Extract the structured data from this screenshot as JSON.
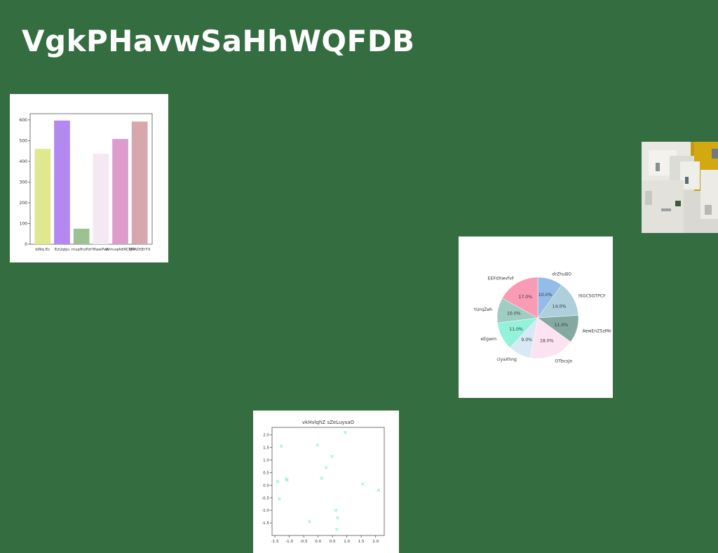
{
  "page": {
    "title": "VgkPHavwSaHhWQFDB"
  },
  "chart_data": [
    {
      "type": "bar",
      "categories": [
        "bWq Ec",
        "EzUqtJu",
        "mvpfhzPzf",
        "MawPwv",
        "WmuqAltRCMR",
        "QTADtErYX"
      ],
      "values": [
        460,
        597,
        75,
        437,
        508,
        592
      ],
      "colors": [
        "#dfe88f",
        "#b389ef",
        "#9dc291",
        "#f4e8f3",
        "#dd9ccc",
        "#d6a8ae"
      ],
      "ylim": [
        0,
        630
      ],
      "yticks": [
        "0",
        "100",
        "200",
        "300",
        "400",
        "500",
        "600"
      ],
      "title": "",
      "xlabel": "",
      "ylabel": ""
    },
    {
      "type": "pie",
      "labels": [
        "drZhuBO",
        "ISGCSGTPCF",
        "AewEnZSzMo",
        "OTbcsJn",
        "ciyaXhng",
        "eEgwm",
        "YUrqZeh",
        "EEFdXwvfvF"
      ],
      "values": [
        10.0,
        14.0,
        11.0,
        18.0,
        9.0,
        11.0,
        10.0,
        17.0
      ],
      "pct_labels": [
        "10.0%",
        "14.0%",
        "11.0%",
        "18.0%",
        "9.0%",
        "11.0%",
        "10.0%",
        "17.0%"
      ],
      "colors": [
        "#93bde8",
        "#aecfdb",
        "#84a9a0",
        "#fde3f1",
        "#d6e9f5",
        "#93f2d9",
        "#a0cdc2",
        "#f99bb4"
      ],
      "title": ""
    },
    {
      "type": "scatter",
      "title": "vkHvlqhZ sZeLuysaO",
      "x": [
        -1.4,
        -1.35,
        -1.28,
        -1.1,
        -1.08,
        -0.3,
        -0.02,
        0.12,
        0.28,
        0.48,
        0.62,
        0.65,
        0.68,
        0.95,
        1.55,
        2.1
      ],
      "y": [
        0.15,
        -0.55,
        1.55,
        0.25,
        0.2,
        -1.45,
        1.6,
        0.28,
        0.7,
        1.15,
        -1.0,
        -1.75,
        -1.3,
        2.1,
        0.05,
        -0.2
      ],
      "xlim": [
        -1.6,
        2.3
      ],
      "ylim": [
        -2.0,
        2.3
      ],
      "xticks": [
        "-1.5",
        "-1.0",
        "-0.5",
        "0.0",
        "0.5",
        "1.0",
        "1.5",
        "2.0"
      ],
      "yticks": [
        "-1.5",
        "-1.0",
        "-0.5",
        "0.0",
        "0.5",
        "1.0",
        "1.5",
        "2.0"
      ],
      "color": "#8ff0c8",
      "marker": "x",
      "xlabel": "",
      "ylabel": ""
    }
  ],
  "photo": {
    "icon": "whitewashed-buildings-photo"
  }
}
